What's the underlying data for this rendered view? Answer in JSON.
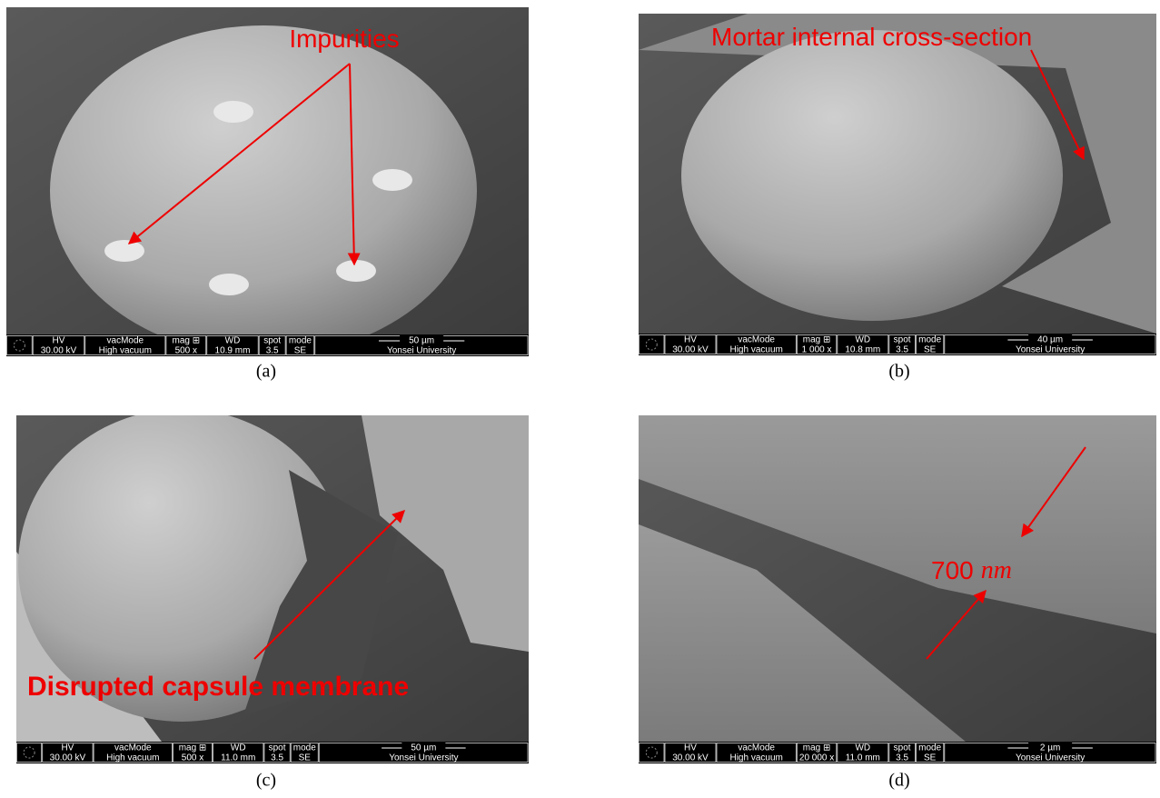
{
  "panels": [
    {
      "caption": "(a)",
      "annotation": "Impurities",
      "info": {
        "labels": [
          "HV",
          "vacMode",
          "mag ⊞",
          "WD",
          "spot",
          "mode"
        ],
        "values": [
          "30.00 kV",
          "High vacuum",
          "500 x",
          "10.9 mm",
          "3.5",
          "SE"
        ],
        "scale": "50 µm",
        "institution": "Yonsei University"
      }
    },
    {
      "caption": "(b)",
      "annotation": "Mortar internal cross-section",
      "info": {
        "labels": [
          "HV",
          "vacMode",
          "mag ⊞",
          "WD",
          "spot",
          "mode"
        ],
        "values": [
          "30.00 kV",
          "High vacuum",
          "1 000 x",
          "10.8 mm",
          "3.5",
          "SE"
        ],
        "scale": "40 µm",
        "institution": "Yonsei University"
      }
    },
    {
      "caption": "(c)",
      "annotation": "Disrupted capsule membrane",
      "info": {
        "labels": [
          "HV",
          "vacMode",
          "mag ⊞",
          "WD",
          "spot",
          "mode"
        ],
        "values": [
          "30.00 kV",
          "High vacuum",
          "500 x",
          "11.0 mm",
          "3.5",
          "SE"
        ],
        "scale": "50 µm",
        "institution": "Yonsei University"
      }
    },
    {
      "caption": "(d)",
      "annotation": "700",
      "annotation_unit": "nm",
      "info": {
        "labels": [
          "HV",
          "vacMode",
          "mag ⊞",
          "WD",
          "spot",
          "mode"
        ],
        "values": [
          "30.00 kV",
          "High vacuum",
          "20 000 x",
          "11.0 mm",
          "3.5",
          "SE"
        ],
        "scale": "2 µm",
        "institution": "Yonsei University"
      }
    }
  ]
}
